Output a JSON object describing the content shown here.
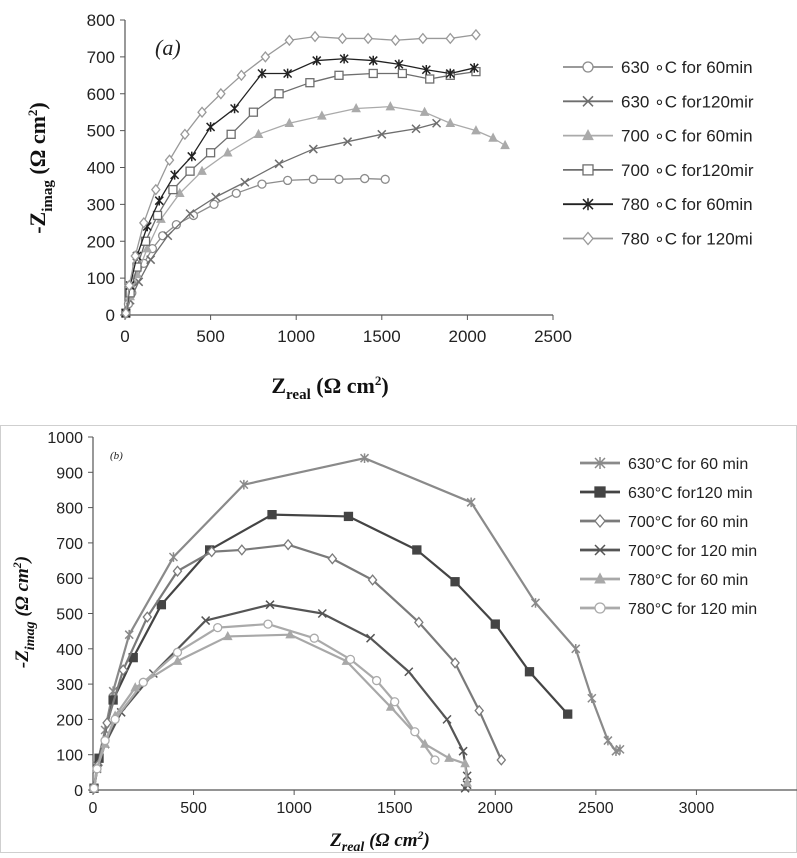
{
  "chart_data": [
    {
      "panel": "(a)",
      "type": "scatter",
      "xlabel": "Z",
      "xlabel_sub": "real",
      "xlabel_unit": "(Ω cm",
      "xlabel_unit_end": ")",
      "ylabel": "-Z",
      "ylabel_sub": "imag",
      "ylabel_unit": "(Ω cm",
      "ylabel_unit_end": ")",
      "xlim": [
        0,
        2500
      ],
      "ylim": [
        0,
        800
      ],
      "xticks": [
        0,
        500,
        1000,
        1500,
        2000,
        2500
      ],
      "yticks": [
        0,
        100,
        200,
        300,
        400,
        500,
        600,
        700,
        800
      ],
      "grid": false,
      "legend_position": "right",
      "series": [
        {
          "name": "630 ∘C for 60min",
          "marker": "circle",
          "color": "#8c8c8c",
          "x": [
            5,
            20,
            40,
            70,
            110,
            160,
            220,
            300,
            400,
            520,
            650,
            800,
            950,
            1100,
            1250,
            1400,
            1520
          ],
          "y": [
            5,
            30,
            60,
            100,
            140,
            180,
            215,
            245,
            270,
            300,
            330,
            355,
            365,
            368,
            368,
            370,
            368
          ]
        },
        {
          "name": "630 ∘C for120mir",
          "marker": "x",
          "color": "#6e6e6e",
          "x": [
            5,
            30,
            80,
            150,
            250,
            380,
            530,
            700,
            900,
            1100,
            1300,
            1500,
            1700,
            1820
          ],
          "y": [
            5,
            40,
            90,
            150,
            215,
            275,
            320,
            360,
            410,
            450,
            470,
            490,
            505,
            520
          ]
        },
        {
          "name": "700 ∘C for 60min",
          "marker": "triangle",
          "color": "#aaaaaa",
          "x": [
            5,
            30,
            70,
            130,
            210,
            320,
            450,
            600,
            780,
            960,
            1150,
            1350,
            1550,
            1750,
            1900,
            2050,
            2150,
            2220
          ],
          "y": [
            5,
            50,
            110,
            180,
            260,
            330,
            390,
            440,
            490,
            520,
            540,
            560,
            565,
            550,
            520,
            500,
            480,
            460
          ]
        },
        {
          "name": "700 ∘C for120mir",
          "marker": "square",
          "color": "#6e6e6e",
          "x": [
            5,
            30,
            70,
            120,
            190,
            280,
            380,
            500,
            620,
            750,
            900,
            1080,
            1250,
            1450,
            1620,
            1780,
            1900,
            2050
          ],
          "y": [
            5,
            60,
            130,
            200,
            270,
            340,
            390,
            440,
            490,
            550,
            600,
            630,
            650,
            655,
            655,
            640,
            650,
            660
          ]
        },
        {
          "name": "780 ∘C for 60min",
          "marker": "star",
          "color": "#222222",
          "x": [
            5,
            30,
            70,
            130,
            200,
            290,
            390,
            500,
            640,
            800,
            950,
            1120,
            1280,
            1450,
            1600,
            1760,
            1900,
            2040
          ],
          "y": [
            5,
            80,
            160,
            240,
            310,
            380,
            430,
            510,
            560,
            655,
            655,
            690,
            695,
            690,
            680,
            665,
            655,
            670
          ]
        },
        {
          "name": "780 ∘C for 120mi",
          "marker": "diamond",
          "color": "#999999",
          "x": [
            5,
            25,
            60,
            110,
            180,
            260,
            350,
            450,
            560,
            680,
            820,
            960,
            1110,
            1270,
            1420,
            1580,
            1740,
            1900,
            2050
          ],
          "y": [
            5,
            80,
            160,
            250,
            340,
            420,
            490,
            550,
            600,
            650,
            700,
            745,
            755,
            750,
            750,
            745,
            750,
            750,
            760
          ]
        }
      ]
    },
    {
      "panel": "(b)",
      "type": "line",
      "xlabel": "Z",
      "xlabel_sub": "real",
      "xlabel_unit": "(Ω cm",
      "xlabel_unit_end": ")",
      "ylabel": "-Z",
      "ylabel_sub": "imag",
      "ylabel_unit": "(Ω cm",
      "ylabel_unit_end": ")",
      "xlim": [
        0,
        3500
      ],
      "ylim": [
        0,
        1000
      ],
      "xticks": [
        0,
        500,
        1000,
        1500,
        2000,
        2500,
        3000
      ],
      "yticks": [
        0,
        100,
        200,
        300,
        400,
        500,
        600,
        700,
        800,
        900,
        1000
      ],
      "grid": false,
      "legend_position": "top-right",
      "series": [
        {
          "name": "630°C for 60 min",
          "marker": "star",
          "color": "#8a8a8a",
          "x": [
            5,
            20,
            60,
            100,
            180,
            400,
            750,
            1350,
            1880,
            2200,
            2400,
            2480,
            2560,
            2600,
            2620
          ],
          "y": [
            5,
            70,
            170,
            280,
            440,
            660,
            865,
            940,
            815,
            530,
            400,
            260,
            140,
            110,
            115
          ]
        },
        {
          "name": "630°C for120 min",
          "marker": "square",
          "color": "#444444",
          "x": [
            5,
            30,
            100,
            200,
            340,
            580,
            890,
            1270,
            1610,
            1800,
            2000,
            2170,
            2360
          ],
          "y": [
            5,
            90,
            255,
            375,
            525,
            680,
            780,
            775,
            680,
            590,
            470,
            335,
            215
          ]
        },
        {
          "name": "700°C for 60 min",
          "marker": "diamond",
          "color": "#7a7a7a",
          "x": [
            5,
            25,
            70,
            150,
            270,
            420,
            590,
            740,
            970,
            1190,
            1390,
            1620,
            1800,
            1920,
            2030
          ],
          "y": [
            5,
            70,
            190,
            340,
            490,
            620,
            675,
            680,
            695,
            655,
            595,
            475,
            360,
            225,
            85
          ]
        },
        {
          "name": "700°C for 120 min",
          "marker": "x",
          "color": "#555555",
          "x": [
            5,
            20,
            60,
            140,
            300,
            560,
            880,
            1140,
            1380,
            1570,
            1760,
            1840,
            1860,
            1860,
            1850
          ],
          "y": [
            5,
            60,
            130,
            220,
            330,
            480,
            525,
            500,
            430,
            335,
            200,
            110,
            40,
            15,
            5
          ]
        },
        {
          "name": "780°C for 60 min",
          "marker": "triangle",
          "color": "#a8a8a8",
          "x": [
            5,
            20,
            60,
            110,
            210,
            420,
            670,
            980,
            1260,
            1480,
            1650,
            1770,
            1850,
            1860
          ],
          "y": [
            5,
            60,
            130,
            210,
            290,
            365,
            435,
            440,
            365,
            235,
            130,
            90,
            75,
            20
          ]
        },
        {
          "name": "780°C for 120 min",
          "marker": "circle",
          "color": "#aaaaaa",
          "x": [
            5,
            20,
            60,
            110,
            250,
            420,
            620,
            870,
            1100,
            1280,
            1410,
            1500,
            1600,
            1700
          ],
          "y": [
            5,
            60,
            140,
            200,
            305,
            390,
            460,
            470,
            430,
            370,
            310,
            250,
            165,
            85
          ]
        }
      ]
    }
  ]
}
